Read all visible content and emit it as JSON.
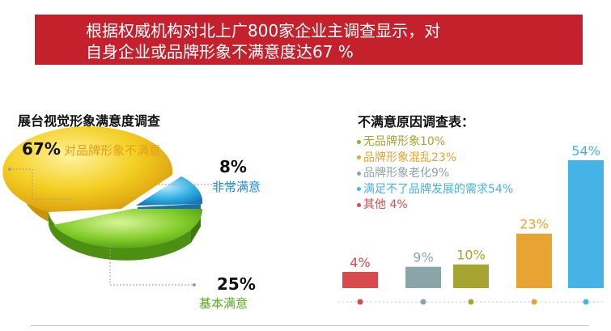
{
  "banner": {
    "line1": "根据权威机构对北上广800家企业主调查显示，对",
    "line2": "自身企业或品牌形象不满意度达67 %"
  },
  "colors": {
    "banner": "#c4212d",
    "pie_yellow": "#f2c21b",
    "pie_blue": "#23a6dd",
    "pie_green": "#76c423"
  },
  "pie": {
    "title": "展台视觉形象满意度调查",
    "slices": [
      {
        "pct": "67%",
        "label": "对品牌形象不满意",
        "value": 67,
        "color": "#f2c21b",
        "label_color": "#e59f14"
      },
      {
        "pct": "8%",
        "label": "非常满意",
        "value": 8,
        "color": "#23a6dd",
        "label_color": "#1e8bd0"
      },
      {
        "pct": "25%",
        "label": "基本满意",
        "value": 25,
        "color": "#76c423",
        "label_color": "#5aaa1d"
      }
    ]
  },
  "chart_data": {
    "type": "bar",
    "title": "不满意原因调查表：",
    "categories": [
      "其他",
      "品牌形象老化",
      "无品牌形象",
      "品牌形象混乱",
      "满足不了品牌发展的需求"
    ],
    "values": [
      4,
      9,
      10,
      23,
      54
    ],
    "value_labels": [
      "4%",
      "9%",
      "10%",
      "23%",
      "54%"
    ],
    "colors": [
      "#d94a4f",
      "#8ba4a8",
      "#a6a532",
      "#e8a433",
      "#45b3e6"
    ],
    "legend": [
      {
        "label": "无品牌形象10%",
        "color": "#a6a532"
      },
      {
        "label": "品牌形象混乱23%",
        "color": "#e8a433"
      },
      {
        "label": "品牌形象老化9%",
        "color": "#8ba4a8"
      },
      {
        "label": "满足不了品牌发展的需求54%",
        "color": "#45b3e6"
      },
      {
        "label": "其他 4%",
        "color": "#d94a4f"
      }
    ],
    "ylim": [
      0,
      54
    ]
  }
}
